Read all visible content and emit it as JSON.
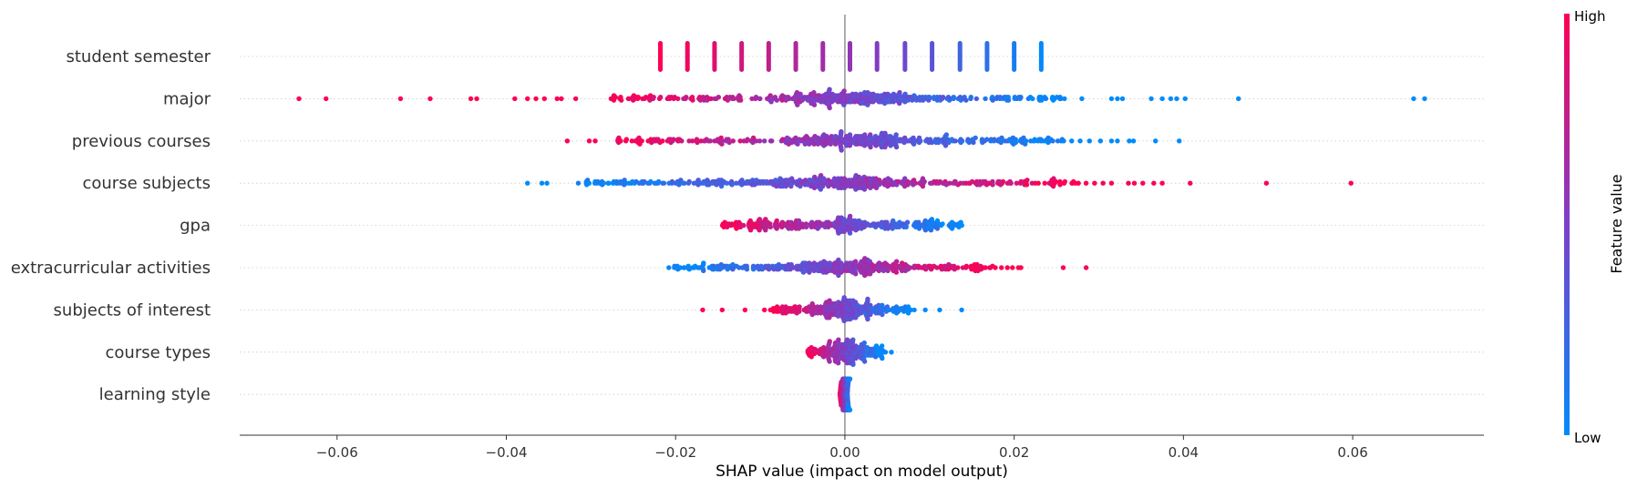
{
  "chart_data": {
    "type": "scatter",
    "subtype": "shap-beeswarm",
    "title": "",
    "xlabel": "SHAP value (impact on model output)",
    "xlim": [
      -0.0715,
      0.0755
    ],
    "xticks": [
      -0.06,
      -0.04,
      -0.02,
      0.0,
      0.02,
      0.04,
      0.06
    ],
    "xtick_labels": [
      "−0.06",
      "−0.04",
      "−0.02",
      "0.00",
      "0.02",
      "0.04",
      "0.06"
    ],
    "grid": "horizontal dotted row guides",
    "colorbar": {
      "title": "Feature value",
      "high_label": "High",
      "low_label": "Low",
      "high_color": "#ff0052",
      "mid_color": "#7d3fc8",
      "low_color": "#008bfb",
      "placement": "right"
    },
    "features": [
      {
        "name": "student semester",
        "discrete": true,
        "levels": [
          {
            "x": -0.0218,
            "v": 1.0
          },
          {
            "x": -0.0186,
            "v": 0.94
          },
          {
            "x": -0.0154,
            "v": 0.88
          },
          {
            "x": -0.0122,
            "v": 0.82
          },
          {
            "x": -0.009,
            "v": 0.76
          },
          {
            "x": -0.0058,
            "v": 0.7
          },
          {
            "x": -0.0026,
            "v": 0.64
          },
          {
            "x": 0.0006,
            "v": 0.58
          },
          {
            "x": 0.0038,
            "v": 0.52
          },
          {
            "x": 0.0071,
            "v": 0.44
          },
          {
            "x": 0.0103,
            "v": 0.36
          },
          {
            "x": 0.0136,
            "v": 0.26
          },
          {
            "x": 0.0168,
            "v": 0.18
          },
          {
            "x": 0.02,
            "v": 0.1
          },
          {
            "x": 0.0232,
            "v": 0.02
          }
        ]
      },
      {
        "name": "major",
        "core_min": -0.028,
        "core_max": 0.026,
        "peak": 0.0008,
        "width": 0.0045,
        "count": 420,
        "direction": -1,
        "outliers": [
          -0.0645,
          -0.0613,
          -0.0525,
          -0.049,
          -0.0442,
          -0.0435,
          -0.039,
          -0.0375,
          -0.0365,
          -0.0355,
          -0.034,
          -0.0335,
          -0.0318,
          0.028,
          0.0315,
          0.0322,
          0.0328,
          0.0362,
          0.0375,
          0.0385,
          0.0392,
          0.0402,
          0.0465,
          0.0672,
          0.0685
        ]
      },
      {
        "name": "previous courses",
        "core_min": -0.027,
        "core_max": 0.026,
        "peak": 0.0012,
        "width": 0.0045,
        "count": 420,
        "direction": -1,
        "outliers": [
          -0.0328,
          -0.0302,
          -0.0295,
          -0.0268,
          -0.0258,
          0.0268,
          0.0278,
          0.0289,
          0.0302,
          0.0315,
          0.0322,
          0.0336,
          0.0341,
          0.0367,
          0.0395
        ]
      },
      {
        "name": "course subjects",
        "core_min": -0.031,
        "core_max": 0.028,
        "peak": -0.0015,
        "width": 0.006,
        "count": 450,
        "direction": 1,
        "outliers": [
          -0.0375,
          -0.0358,
          -0.0352,
          -0.0315,
          -0.0305,
          -0.0295,
          -0.0287,
          -0.0279,
          -0.0262,
          -0.0255,
          0.0285,
          0.0295,
          0.0305,
          0.0315,
          0.0335,
          0.0342,
          0.0352,
          0.0365,
          0.0375,
          0.0408,
          0.0498,
          0.0598
        ]
      },
      {
        "name": "gpa",
        "core_min": -0.0145,
        "core_max": 0.014,
        "peak": -0.0002,
        "width": 0.0012,
        "count": 320,
        "direction": -1,
        "uniform_share": 0.85,
        "outliers": []
      },
      {
        "name": "extracurricular activities",
        "core_min": -0.0205,
        "core_max": 0.018,
        "peak": 0.0002,
        "width": 0.0042,
        "count": 380,
        "direction": 1,
        "outliers": [
          -0.0208,
          -0.0198,
          -0.0185,
          -0.0168,
          -0.0155,
          -0.0142,
          -0.0125,
          -0.0108,
          -0.0095,
          0.0185,
          0.0192,
          0.0198,
          0.0205,
          0.0208,
          0.0258,
          0.0285
        ]
      },
      {
        "name": "subjects of interest",
        "core_min": -0.0085,
        "core_max": 0.0075,
        "peak": 0.0,
        "width": 0.0022,
        "count": 280,
        "direction": -1,
        "outliers": [
          -0.0168,
          -0.0145,
          -0.0118,
          -0.0095,
          -0.0088,
          0.0078,
          0.0082,
          0.0095,
          0.0112,
          0.0138
        ]
      },
      {
        "name": "course types",
        "core_min": -0.0045,
        "core_max": 0.0045,
        "peak": 0.0003,
        "width": 0.0016,
        "count": 230,
        "direction": -1,
        "outliers": [
          0.0048,
          0.0055
        ]
      },
      {
        "name": "learning style",
        "core_min": -0.0006,
        "core_max": 0.0006,
        "peak": 0.0,
        "width": 0.0004,
        "count": 130,
        "direction": -1,
        "outliers": []
      }
    ]
  }
}
